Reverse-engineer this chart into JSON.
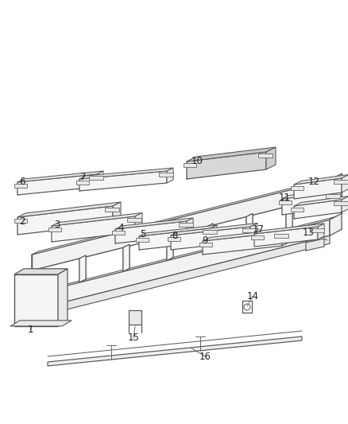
{
  "bg_color": "#ffffff",
  "line_color": "#555555",
  "figsize": [
    4.38,
    5.33
  ],
  "dpi": 100
}
